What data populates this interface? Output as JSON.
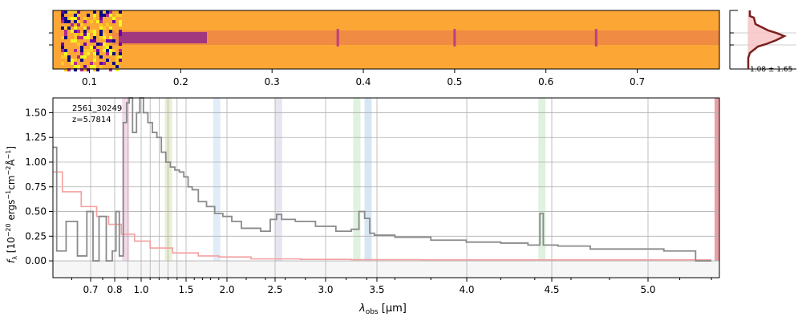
{
  "chart_data": [
    {
      "type": "heatmap",
      "panel": "2d-spectrum",
      "colormap": "plasma",
      "x_ticks": [
        0.1,
        0.2,
        0.3,
        0.4,
        0.5,
        0.6,
        0.7
      ],
      "x_tick_labels": [
        "0.1",
        "0.2",
        "0.3",
        "0.4",
        "0.5",
        "0.6",
        "0.7"
      ],
      "x_range": [
        0.06,
        0.79
      ],
      "highlighted_columns": [
        0.372,
        0.5,
        0.655
      ]
    },
    {
      "type": "line",
      "panel": "spatial-profile",
      "annotation": "1.08 ± 1.65",
      "fill_color": "#f8c8c8",
      "line_color": "#7a1f1f"
    },
    {
      "type": "line",
      "panel": "1d-spectrum",
      "annotation_lines": [
        "2561_30249",
        "z=5.7814"
      ],
      "xlabel_main": "λ",
      "xlabel_sub": "obs",
      "xlabel_unit": " [μm]",
      "ylabel": "f_λ [10^-20 ergs^-1 cm^-2 Å^-1]",
      "ylabel_base": "f",
      "ylabel_sub": "λ",
      "ylabel_pre": " [10",
      "ylabel_exp": "−20",
      "ylabel_mid": " ergs",
      "ylabel_exp2": "−1",
      "ylabel_cm": "cm",
      "ylabel_exp3": "−2",
      "ylabel_ang": "Å",
      "ylabel_exp4": "−1",
      "ylabel_end": "]",
      "ylim": [
        -0.17,
        1.65
      ],
      "y_ticks": [
        0.0,
        0.25,
        0.5,
        0.75,
        1.0,
        1.25,
        1.5
      ],
      "y_tick_labels": [
        "0.00",
        "0.25",
        "0.50",
        "0.75",
        "1.00",
        "1.25",
        "1.50"
      ],
      "x_tick_labels": [
        "0.7",
        "0.8",
        "1.0",
        "1.5",
        "2.0",
        "2.5",
        "3.0",
        "3.5",
        "4.0",
        "4.5",
        "5.0"
      ],
      "x_ticks_px_reference": "nonlinear wavelength axis",
      "x_tick_values": [
        0.7,
        0.8,
        1.0,
        1.5,
        2.0,
        2.5,
        3.0,
        3.5,
        4.0,
        4.5,
        5.0
      ],
      "shaded_bands": [
        {
          "x": 0.88,
          "color": "#f2d6e6"
        },
        {
          "x": 1.3,
          "color": "#e6edd0"
        },
        {
          "x": 1.87,
          "color": "#ddeaf6"
        },
        {
          "x": 2.53,
          "color": "#e6e2f0"
        },
        {
          "x": 3.3,
          "color": "#dcefdc"
        },
        {
          "x": 3.41,
          "color": "#d2e4f2"
        },
        {
          "x": 4.44,
          "color": "#dcefdc"
        }
      ],
      "series": [
        {
          "color": "#8a8a8a",
          "x": [
            0.6,
            0.62,
            0.65,
            0.68,
            0.7,
            0.72,
            0.75,
            0.78,
            0.8,
            0.82,
            0.85,
            0.88,
            0.9,
            0.92,
            0.95,
            0.98,
            1.0,
            1.05,
            1.1,
            1.15,
            1.2,
            1.25,
            1.3,
            1.35,
            1.4,
            1.45,
            1.5,
            1.55,
            1.6,
            1.7,
            1.8,
            1.9,
            2.0,
            2.1,
            2.2,
            2.3,
            2.4,
            2.5,
            2.53,
            2.6,
            2.8,
            3.0,
            3.2,
            3.3,
            3.35,
            3.41,
            3.45,
            3.5,
            3.7,
            3.9,
            4.1,
            4.3,
            4.42,
            4.44,
            4.46,
            4.6,
            4.8,
            5.0,
            5.2,
            5.4
          ],
          "values": [
            1.15,
            0.1,
            0.4,
            0.05,
            0.5,
            0.0,
            0.45,
            0.0,
            0.1,
            0.5,
            0.05,
            1.4,
            1.6,
            1.65,
            1.3,
            1.5,
            1.65,
            1.5,
            1.4,
            1.3,
            1.25,
            1.1,
            1.0,
            0.95,
            0.92,
            0.9,
            0.85,
            0.75,
            0.72,
            0.6,
            0.55,
            0.48,
            0.45,
            0.4,
            0.33,
            0.33,
            0.3,
            0.42,
            0.47,
            0.42,
            0.4,
            0.35,
            0.3,
            0.32,
            0.5,
            0.43,
            0.28,
            0.26,
            0.24,
            0.21,
            0.19,
            0.18,
            0.16,
            0.48,
            0.16,
            0.15,
            0.12,
            0.12,
            0.1,
            0.0
          ]
        },
        {
          "color": "#f4a0a0",
          "x": [
            0.6,
            0.65,
            0.7,
            0.75,
            0.8,
            0.9,
            1.0,
            1.2,
            1.5,
            1.8,
            2.0,
            2.5,
            3.0,
            3.5,
            4.0,
            4.5,
            5.0,
            5.4
          ],
          "values": [
            0.9,
            0.7,
            0.55,
            0.45,
            0.37,
            0.27,
            0.2,
            0.13,
            0.08,
            0.05,
            0.04,
            0.02,
            0.015,
            0.012,
            0.01,
            0.01,
            0.01,
            0.01
          ]
        }
      ]
    }
  ]
}
